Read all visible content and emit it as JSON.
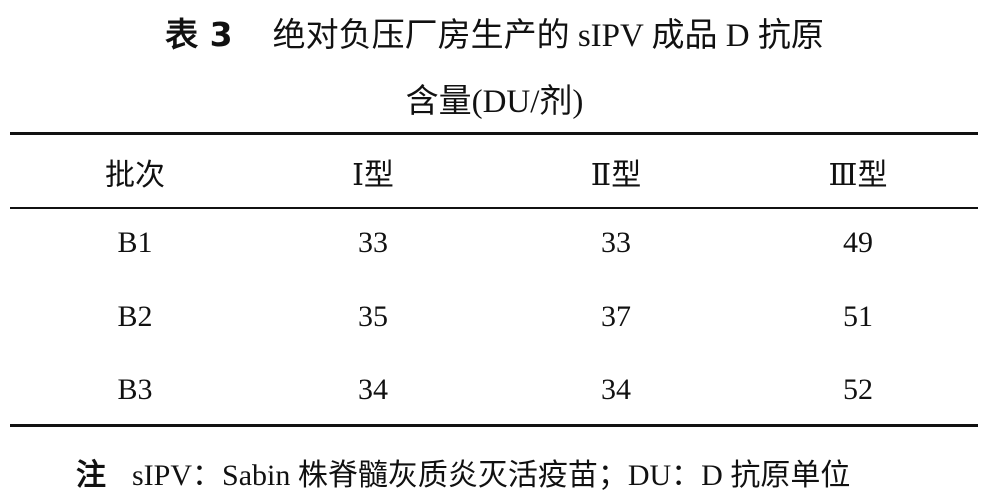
{
  "title": {
    "label": "表 3",
    "lines": [
      "绝对负压厂房生产的 sIPV 成品 D 抗原",
      "含量(DU/剂)"
    ]
  },
  "table": {
    "header": [
      "批次",
      "Ⅰ型",
      "Ⅱ型",
      "Ⅲ型"
    ],
    "rows": [
      [
        "B1",
        33,
        33,
        49
      ],
      [
        "B2",
        35,
        37,
        51
      ],
      [
        "B3",
        34,
        34,
        52
      ]
    ]
  },
  "note": {
    "label": "注",
    "text": "sIPV：Sabin 株脊髓灰质炎灭活疫苗；DU：D 抗原单位"
  }
}
